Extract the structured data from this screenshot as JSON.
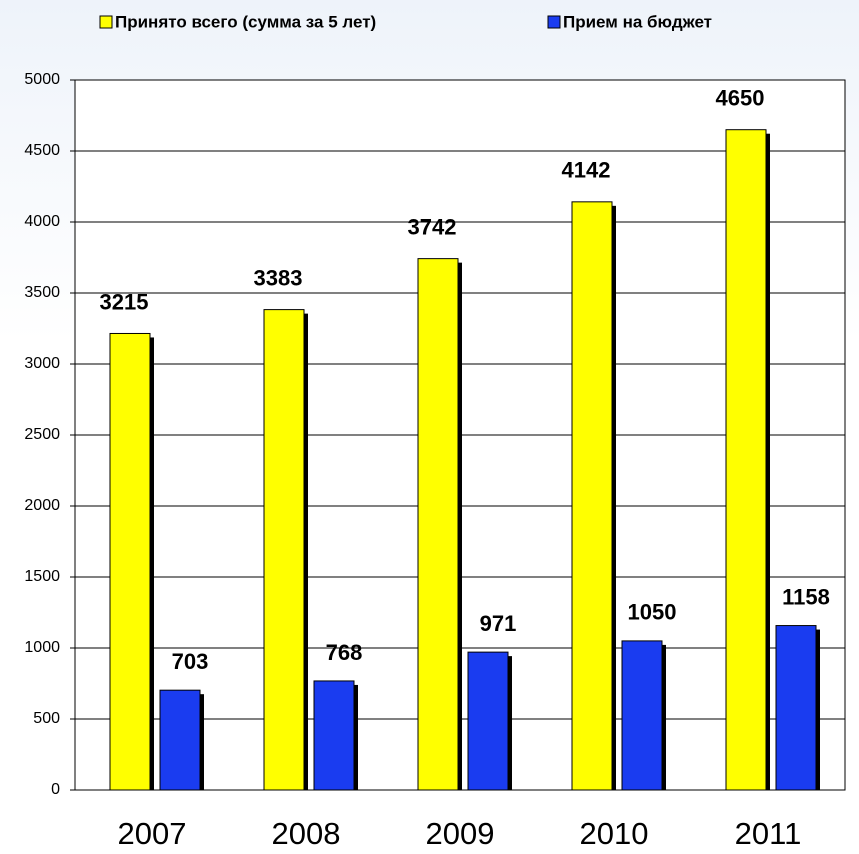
{
  "chart_data": {
    "type": "bar",
    "categories": [
      "2007",
      "2008",
      "2009",
      "2010",
      "2011"
    ],
    "series": [
      {
        "name": "Принято всего (сумма за 5 лет)",
        "color": "#ffff00",
        "values": [
          3215,
          3383,
          3742,
          4142,
          4650
        ]
      },
      {
        "name": "Прием на бюджет",
        "color": "#1a3cf0",
        "values": [
          703,
          768,
          971,
          1050,
          1158
        ]
      }
    ],
    "ylim": [
      0,
      5000
    ],
    "yticks": [
      0,
      500,
      1000,
      1500,
      2000,
      2500,
      3000,
      3500,
      4000,
      4500,
      5000
    ],
    "grid": true,
    "legend": "top"
  }
}
